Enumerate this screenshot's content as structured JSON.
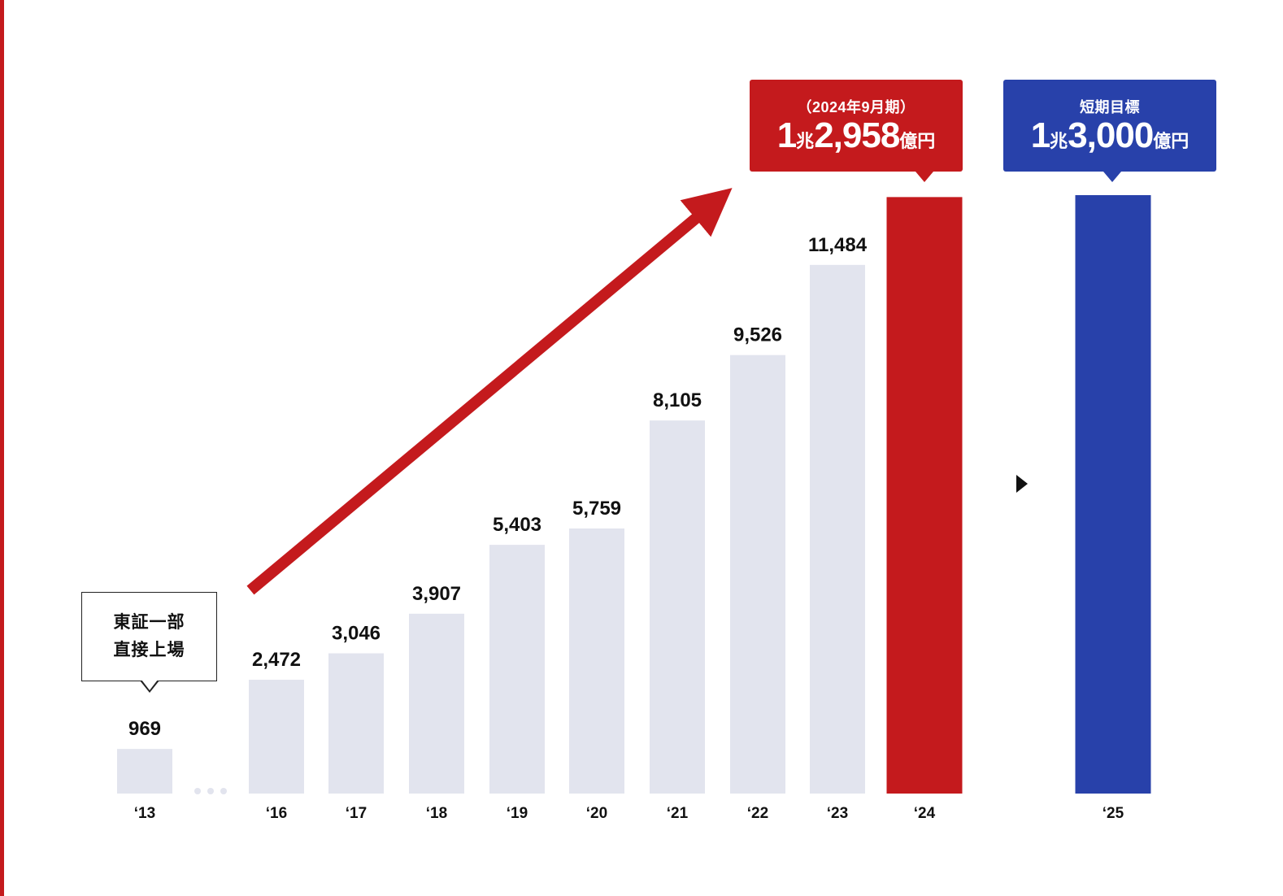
{
  "chart_data": {
    "type": "bar",
    "categories": [
      "‘13",
      "‘16",
      "‘17",
      "‘18",
      "‘19",
      "‘20",
      "‘21",
      "‘22",
      "‘23",
      "‘24",
      "‘25"
    ],
    "values": [
      969,
      2472,
      3046,
      3907,
      5403,
      5759,
      8105,
      9526,
      11484,
      12958,
      13000
    ],
    "value_labels": [
      "969",
      "2,472",
      "3,046",
      "3,907",
      "5,403",
      "5,759",
      "8,105",
      "9,526",
      "11,484",
      "",
      ""
    ],
    "bar_colors": [
      "#e2e4ee",
      "#e2e4ee",
      "#e2e4ee",
      "#e2e4ee",
      "#e2e4ee",
      "#e2e4ee",
      "#e2e4ee",
      "#e2e4ee",
      "#e2e4ee",
      "#c41a1d",
      "#2841aa"
    ],
    "ylim": [
      0,
      13000
    ],
    "grid": false,
    "legend": "none",
    "title": "",
    "xlabel": "",
    "ylabel": "",
    "trend_arrow_color": "#c41a1d"
  },
  "callouts": {
    "actual": {
      "caption": "（2024年9月期）",
      "lead_num": "1",
      "unit1": "兆",
      "main_num": "2,958",
      "unit2": "億円",
      "color": "#c41a1d"
    },
    "target": {
      "caption": "短期目標",
      "lead_num": "1",
      "unit1": "兆",
      "main_num": "3,000",
      "unit2": "億円",
      "color": "#2841aa"
    }
  },
  "listing_note": {
    "line1": "東証一部",
    "line2": "直接上場"
  },
  "icons": {
    "arrow": "triangle-right-icon",
    "gap": "ellipsis-dots-icon",
    "trend": "trend-arrow-icon"
  }
}
